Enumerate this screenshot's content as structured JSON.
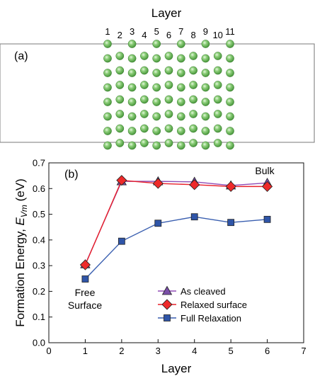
{
  "panel_a": {
    "label": "(a)",
    "title": "Layer",
    "layer_numbers": [
      "1",
      "2",
      "3",
      "4",
      "5",
      "6",
      "7",
      "8",
      "9",
      "10",
      "11"
    ],
    "atoms_per_column_even": 8,
    "atoms_per_column_odd": 7,
    "atom_color": "#6dbf5b"
  },
  "chart_data": {
    "type": "line",
    "panel_label": "(b)",
    "xlabel": "Layer",
    "ylabel_main": "Formation Energy, ",
    "ylabel_symbol": "E",
    "ylabel_sub": "Vm",
    "ylabel_unit": " (eV)",
    "xlim": [
      0,
      7
    ],
    "ylim": [
      0.0,
      0.7
    ],
    "xticks": [
      "0",
      "1",
      "2",
      "3",
      "4",
      "5",
      "6",
      "7"
    ],
    "yticks": [
      "0.0",
      "0.1",
      "0.2",
      "0.3",
      "0.4",
      "0.5",
      "0.6",
      "0.7"
    ],
    "x": [
      1,
      2,
      3,
      4,
      5,
      6
    ],
    "series": [
      {
        "name": "As cleaved",
        "marker": "triangle",
        "color": "#8f4bb5",
        "fill": "#7a4fa8",
        "values": [
          0.305,
          0.628,
          0.628,
          0.626,
          0.612,
          0.622
        ]
      },
      {
        "name": "Relaxed surface",
        "marker": "diamond",
        "color": "#e8202a",
        "fill": "#ee2a2a",
        "values": [
          0.303,
          0.632,
          0.62,
          0.615,
          0.608,
          0.608
        ]
      },
      {
        "name": "Full Relaxation",
        "marker": "square",
        "color": "#3a5fb0",
        "fill": "#2f55a8",
        "values": [
          0.248,
          0.395,
          0.465,
          0.49,
          0.468,
          0.48
        ]
      }
    ],
    "annotations": {
      "free": "Free",
      "surface": "Surface",
      "bulk": "Bulk"
    },
    "legend_position": "bottom-right",
    "grid": false
  }
}
